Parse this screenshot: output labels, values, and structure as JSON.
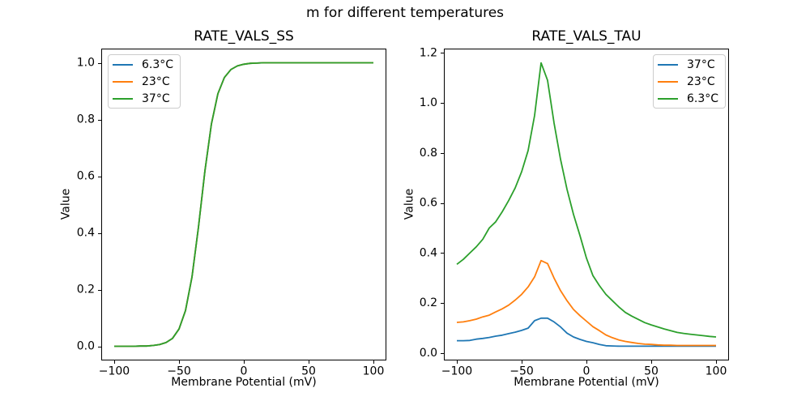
{
  "title": "m for different temperatures",
  "colors": {
    "series_blue": "#1f77b4",
    "series_orange": "#ff7f0e",
    "series_green": "#2ca02c",
    "axis": "#000000",
    "legend_border": "#cccccc",
    "background": "#ffffff"
  },
  "chart_data": [
    {
      "type": "line",
      "title": "RATE_VALS_SS",
      "xlabel": "Membrane Potential (mV)",
      "ylabel": "Value",
      "xlim": [
        -110,
        110
      ],
      "ylim": [
        -0.05,
        1.05
      ],
      "grid": false,
      "xticks": [
        -100,
        -50,
        0,
        50,
        100
      ],
      "xtick_labels": [
        "−100",
        "−50",
        "0",
        "50",
        "100"
      ],
      "yticks": [
        0.0,
        0.2,
        0.4,
        0.6,
        0.8,
        1.0
      ],
      "ytick_labels": [
        "0.0",
        "0.2",
        "0.4",
        "0.6",
        "0.8",
        "1.0"
      ],
      "legend_position": "upper-left",
      "legend": [
        {
          "label": "6.3°C",
          "color": "#1f77b4"
        },
        {
          "label": "23°C",
          "color": "#ff7f0e"
        },
        {
          "label": "37°C",
          "color": "#2ca02c"
        }
      ],
      "x": [
        -100,
        -95,
        -90,
        -85,
        -80,
        -75,
        -70,
        -65,
        -60,
        -55,
        -50,
        -45,
        -40,
        -35,
        -30,
        -25,
        -20,
        -15,
        -10,
        -5,
        0,
        5,
        10,
        15,
        20,
        25,
        30,
        35,
        40,
        45,
        50,
        55,
        60,
        65,
        70,
        75,
        80,
        85,
        90,
        95,
        100
      ],
      "series": [
        {
          "name": "6.3°C",
          "color": "#1f77b4",
          "values": [
            0,
            0,
            0,
            0,
            0.001,
            0.001,
            0.003,
            0.006,
            0.013,
            0.028,
            0.061,
            0.126,
            0.244,
            0.42,
            0.619,
            0.784,
            0.891,
            0.948,
            0.976,
            0.989,
            0.995,
            0.998,
            0.999,
            1,
            1,
            1,
            1,
            1,
            1,
            1,
            1,
            1,
            1,
            1,
            1,
            1,
            1,
            1,
            1,
            1,
            1
          ]
        },
        {
          "name": "23°C",
          "color": "#ff7f0e",
          "values": [
            0,
            0,
            0,
            0,
            0.001,
            0.001,
            0.003,
            0.006,
            0.013,
            0.028,
            0.061,
            0.126,
            0.244,
            0.42,
            0.619,
            0.784,
            0.891,
            0.948,
            0.976,
            0.989,
            0.995,
            0.998,
            0.999,
            1,
            1,
            1,
            1,
            1,
            1,
            1,
            1,
            1,
            1,
            1,
            1,
            1,
            1,
            1,
            1,
            1,
            1
          ]
        },
        {
          "name": "37°C",
          "color": "#2ca02c",
          "values": [
            0,
            0,
            0,
            0,
            0.001,
            0.001,
            0.003,
            0.006,
            0.013,
            0.028,
            0.061,
            0.126,
            0.244,
            0.42,
            0.619,
            0.784,
            0.891,
            0.948,
            0.976,
            0.989,
            0.995,
            0.998,
            0.999,
            1,
            1,
            1,
            1,
            1,
            1,
            1,
            1,
            1,
            1,
            1,
            1,
            1,
            1,
            1,
            1,
            1,
            1
          ]
        }
      ]
    },
    {
      "type": "line",
      "title": "RATE_VALS_TAU",
      "xlabel": "Membrane Potential (mV)",
      "ylabel": "Value",
      "xlim": [
        -110,
        110
      ],
      "ylim": [
        -0.029,
        1.217
      ],
      "grid": false,
      "xticks": [
        -100,
        -50,
        0,
        50,
        100
      ],
      "xtick_labels": [
        "−100",
        "−50",
        "0",
        "50",
        "100"
      ],
      "yticks": [
        0.0,
        0.2,
        0.4,
        0.6,
        0.8,
        1.0,
        1.2
      ],
      "ytick_labels": [
        "0.0",
        "0.2",
        "0.4",
        "0.6",
        "0.8",
        "1.0",
        "1.2"
      ],
      "legend_position": "upper-right",
      "legend": [
        {
          "label": "37°C",
          "color": "#1f77b4"
        },
        {
          "label": "23°C",
          "color": "#ff7f0e"
        },
        {
          "label": "6.3°C",
          "color": "#2ca02c"
        }
      ],
      "x": [
        -100,
        -95,
        -90,
        -85,
        -80,
        -75,
        -70,
        -65,
        -60,
        -55,
        -50,
        -45,
        -40,
        -35,
        -30,
        -25,
        -20,
        -15,
        -10,
        -5,
        0,
        5,
        10,
        15,
        20,
        25,
        30,
        35,
        40,
        45,
        50,
        55,
        60,
        65,
        70,
        75,
        80,
        85,
        90,
        95,
        100
      ],
      "series": [
        {
          "name": "37°C",
          "color": "#1f77b4",
          "values": [
            0.05,
            0.05,
            0.051,
            0.056,
            0.059,
            0.063,
            0.068,
            0.072,
            0.078,
            0.084,
            0.091,
            0.1,
            0.13,
            0.14,
            0.14,
            0.125,
            0.105,
            0.08,
            0.065,
            0.055,
            0.047,
            0.042,
            0.035,
            0.03,
            0.029,
            0.028,
            0.028,
            0.028,
            0.028,
            0.028,
            0.028,
            0.028,
            0.028,
            0.028,
            0.028,
            0.028,
            0.028,
            0.028,
            0.028,
            0.028,
            0.028
          ]
        },
        {
          "name": "23°C",
          "color": "#ff7f0e",
          "values": [
            0.123,
            0.125,
            0.13,
            0.136,
            0.145,
            0.152,
            0.165,
            0.177,
            0.192,
            0.212,
            0.235,
            0.265,
            0.305,
            0.37,
            0.358,
            0.3,
            0.25,
            0.21,
            0.175,
            0.15,
            0.128,
            0.106,
            0.09,
            0.073,
            0.062,
            0.053,
            0.047,
            0.043,
            0.039,
            0.036,
            0.035,
            0.033,
            0.032,
            0.032,
            0.031,
            0.031,
            0.031,
            0.031,
            0.031,
            0.031,
            0.031
          ]
        },
        {
          "name": "6.3°C",
          "color": "#2ca02c",
          "values": [
            0.355,
            0.375,
            0.4,
            0.425,
            0.455,
            0.5,
            0.525,
            0.565,
            0.61,
            0.66,
            0.725,
            0.81,
            0.95,
            1.16,
            1.09,
            0.92,
            0.775,
            0.655,
            0.555,
            0.47,
            0.38,
            0.31,
            0.27,
            0.235,
            0.21,
            0.185,
            0.163,
            0.148,
            0.135,
            0.122,
            0.113,
            0.105,
            0.097,
            0.09,
            0.083,
            0.079,
            0.076,
            0.073,
            0.07,
            0.067,
            0.065
          ]
        }
      ]
    }
  ]
}
